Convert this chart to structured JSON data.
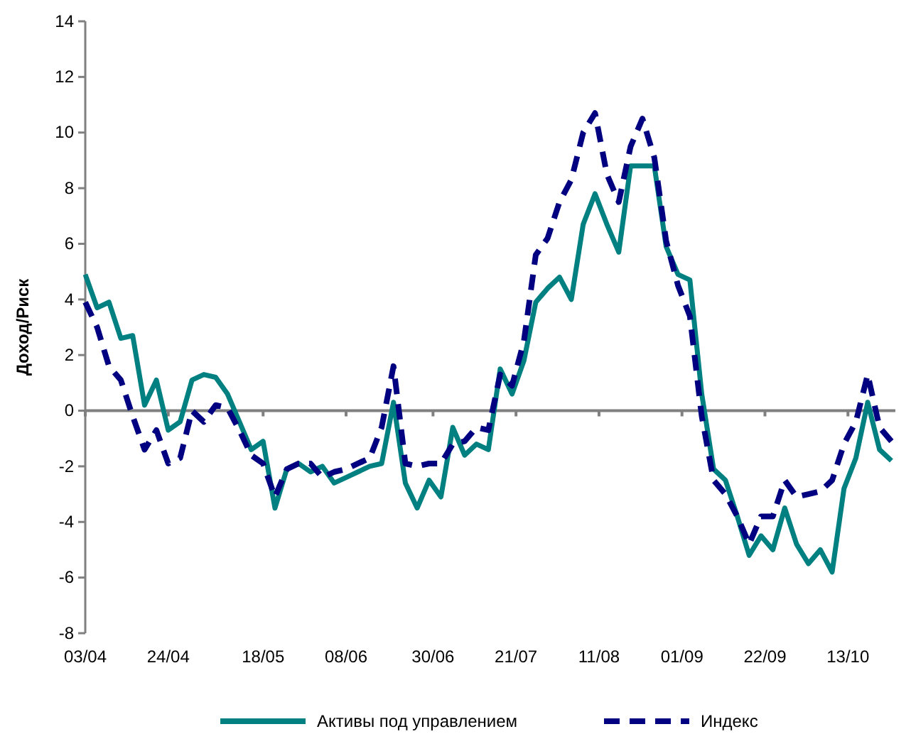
{
  "chart_data": {
    "type": "line",
    "ylabel": "Доход/Риск",
    "ylim": [
      -8,
      14
    ],
    "yticks": [
      -8,
      -6,
      -4,
      -2,
      0,
      2,
      4,
      6,
      8,
      10,
      12,
      14
    ],
    "xlim": [
      "--04-03",
      "--10-25"
    ],
    "xticks": [
      {
        "value": "--04-03",
        "label": "03/04"
      },
      {
        "value": "--04-24",
        "label": "24/04"
      },
      {
        "value": "--05-18",
        "label": "18/05"
      },
      {
        "value": "--06-08",
        "label": "08/06"
      },
      {
        "value": "--06-30",
        "label": "30/06"
      },
      {
        "value": "--07-21",
        "label": "21/07"
      },
      {
        "value": "--08-11",
        "label": "11/08"
      },
      {
        "value": "--09-01",
        "label": "01/09"
      },
      {
        "value": "--09-22",
        "label": "22/09"
      },
      {
        "value": "--10-13",
        "label": "13/10"
      }
    ],
    "x": [
      "--04-03",
      "--04-06",
      "--04-09",
      "--04-12",
      "--04-15",
      "--04-18",
      "--04-21",
      "--04-24",
      "--04-27",
      "--04-30",
      "--05-03",
      "--05-06",
      "--05-09",
      "--05-12",
      "--05-15",
      "--05-18",
      "--05-21",
      "--05-24",
      "--05-27",
      "--05-30",
      "--06-02",
      "--06-05",
      "--06-08",
      "--06-11",
      "--06-14",
      "--06-17",
      "--06-20",
      "--06-23",
      "--06-26",
      "--06-29",
      "--07-02",
      "--07-05",
      "--07-08",
      "--07-11",
      "--07-14",
      "--07-17",
      "--07-20",
      "--07-23",
      "--07-26",
      "--07-29",
      "--08-01",
      "--08-04",
      "--08-07",
      "--08-10",
      "--08-13",
      "--08-16",
      "--08-19",
      "--08-22",
      "--08-25",
      "--08-28",
      "--08-31",
      "--09-03",
      "--09-06",
      "--09-09",
      "--09-12",
      "--09-15",
      "--09-18",
      "--09-21",
      "--09-24",
      "--09-27",
      "--09-30",
      "--10-03",
      "--10-06",
      "--10-09",
      "--10-12",
      "--10-15",
      "--10-18",
      "--10-21",
      "--10-24"
    ],
    "legend": "bottom",
    "series": [
      {
        "name": "Активы под управлением",
        "color": "#008080",
        "line_style": "solid",
        "values": [
          4.9,
          3.7,
          3.9,
          2.6,
          2.7,
          0.2,
          1.1,
          -0.7,
          -0.4,
          1.1,
          1.3,
          1.2,
          0.6,
          -0.4,
          -1.4,
          -1.1,
          -3.5,
          -2.1,
          -1.9,
          -2.2,
          -2.0,
          -2.6,
          -2.4,
          -2.2,
          -2.0,
          -1.9,
          0.3,
          -2.6,
          -3.5,
          -2.5,
          -3.1,
          -0.6,
          -1.6,
          -1.2,
          -1.4,
          1.5,
          0.6,
          1.8,
          3.9,
          4.4,
          4.8,
          4.0,
          6.7,
          7.8,
          6.7,
          5.7,
          8.8,
          8.8,
          8.8,
          5.9,
          4.9,
          4.7,
          0.6,
          -2.1,
          -2.5,
          -3.8,
          -5.2,
          -4.5,
          -5.0,
          -3.5,
          -4.8,
          -5.5,
          -5.0,
          -5.8,
          -2.8,
          -1.7,
          0.3,
          -1.4,
          -1.8
        ]
      },
      {
        "name": "Индекс",
        "color": "#000080",
        "line_style": "dashed",
        "values": [
          3.9,
          3.0,
          1.6,
          1.1,
          -0.2,
          -1.4,
          -0.7,
          -1.9,
          -1.7,
          0.0,
          -0.4,
          0.2,
          0.1,
          -0.7,
          -1.6,
          -1.9,
          -3.1,
          -2.1,
          -1.9,
          -1.9,
          -2.4,
          -2.2,
          -2.1,
          -1.9,
          -1.7,
          -0.6,
          1.6,
          -1.9,
          -2.0,
          -1.9,
          -1.9,
          -1.2,
          -1.1,
          -0.6,
          -0.7,
          1.3,
          0.9,
          2.5,
          5.6,
          6.2,
          7.5,
          8.3,
          10.0,
          10.7,
          8.5,
          7.5,
          9.5,
          10.5,
          9.1,
          6.1,
          4.5,
          3.4,
          -0.2,
          -2.5,
          -3.0,
          -3.8,
          -4.8,
          -3.8,
          -3.8,
          -2.5,
          -3.1,
          -3.0,
          -2.9,
          -2.5,
          -1.2,
          -0.4,
          1.3,
          -0.6,
          -1.1
        ]
      }
    ]
  }
}
